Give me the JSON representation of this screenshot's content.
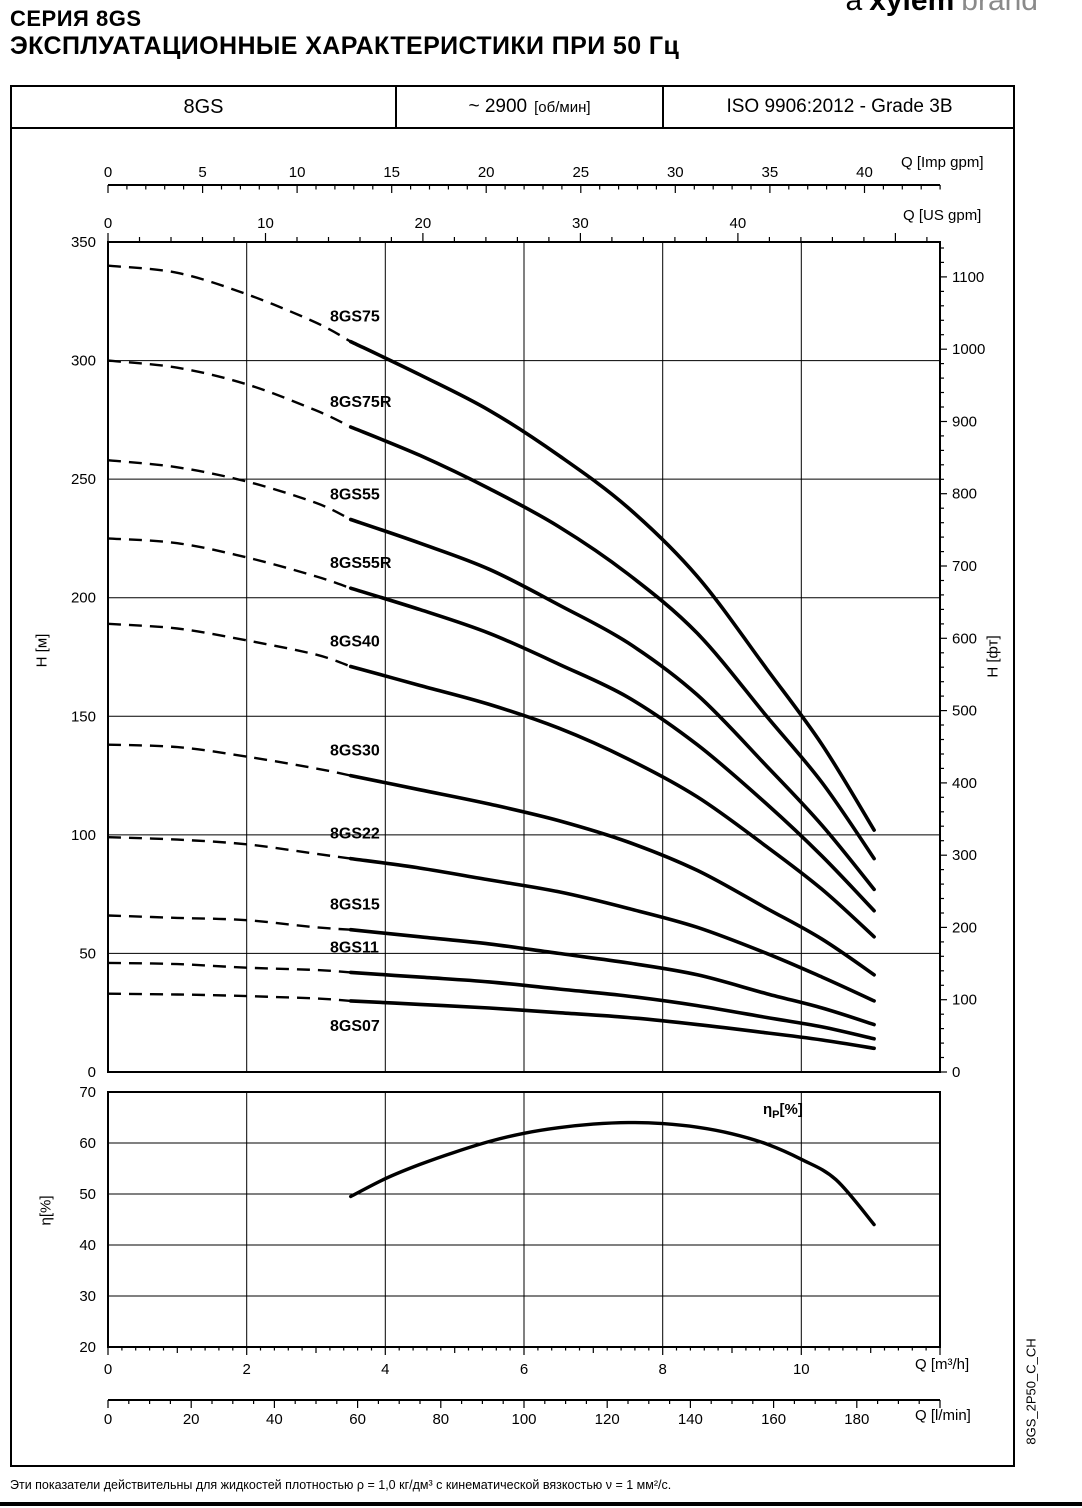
{
  "page": {
    "title": "СЕРИЯ 8GS",
    "subtitle": "ЭКСПЛУАТАЦИОННЫЕ ХАРАКТЕРИСТИКИ ПРИ 50 Гц",
    "brand": {
      "prefix": "a",
      "name": "xylem",
      "suffix": "brand"
    },
    "doc_code": "8GS_2P50_C_CH",
    "footer_note": "Эти показатели действительны для жидкостей плотностью ρ = 1,0 кг/дм³ с кинематической вязкостью ν = 1 мм²/с."
  },
  "header_table": {
    "model": "8GS",
    "speed_value": "~ 2900",
    "speed_unit": "[об/мин]",
    "standard": "ISO 9906:2012 - Grade 3B"
  },
  "chart_data": {
    "type": "line",
    "main_chart": {
      "x_axes": [
        {
          "label": "Q [Imp gpm]",
          "ticks": [
            0,
            5,
            10,
            15,
            20,
            25,
            30,
            35,
            40
          ],
          "units_per_m3h": 3.6662,
          "minor_step": 1,
          "major_step": 5
        },
        {
          "label": "Q [US gpm]",
          "ticks": [
            0,
            10,
            20,
            30,
            40
          ],
          "units_per_m3h": 4.4029,
          "minor_step": 2,
          "major_step": 10
        }
      ],
      "y_axis_left": {
        "label": "H [м]",
        "ticks": [
          0,
          50,
          100,
          150,
          200,
          250,
          300,
          350
        ],
        "range": [
          0,
          350
        ]
      },
      "y_axis_right": {
        "label": "H [фт]",
        "ticks": [
          0,
          100,
          200,
          300,
          400,
          500,
          600,
          700,
          800,
          900,
          1000,
          1100
        ],
        "feet_per_m": 3.2808,
        "minor_step": 20,
        "major_step": 100
      },
      "x_range_m3h": [
        0,
        12
      ],
      "grid_x_m3h": [
        2,
        4,
        6,
        8,
        10
      ],
      "grid_y_m": [
        50,
        100,
        150,
        200,
        250,
        300
      ],
      "q_m3h": [
        0,
        1,
        2,
        3,
        3.5,
        4.5,
        5.5,
        6.5,
        7.5,
        8.5,
        9.5,
        10.3,
        11.05
      ],
      "dashed_until_index": 4,
      "series": [
        {
          "name": "8GS75",
          "H_m": [
            340,
            337,
            328,
            316,
            308,
            294,
            279,
            260,
            238,
            209,
            170,
            138,
            102
          ]
        },
        {
          "name": "8GS75R",
          "H_m": [
            300,
            297,
            290,
            279,
            272,
            260,
            246,
            230,
            210,
            185,
            150,
            122,
            90
          ]
        },
        {
          "name": "8GS55",
          "H_m": [
            258,
            255,
            249,
            240,
            233,
            223,
            212,
            197,
            181,
            159,
            129,
            104,
            77
          ]
        },
        {
          "name": "8GS55R",
          "H_m": [
            225,
            223,
            217,
            209,
            204,
            195,
            185,
            172,
            158,
            138,
            113,
            91,
            68
          ]
        },
        {
          "name": "8GS40",
          "H_m": [
            189,
            187,
            182,
            176,
            171,
            163,
            155,
            145,
            132,
            116,
            95,
            77,
            57
          ]
        },
        {
          "name": "8GS30",
          "H_m": [
            138,
            137,
            133,
            128,
            125,
            119,
            113,
            106,
            97,
            85,
            69,
            56,
            41
          ]
        },
        {
          "name": "8GS22",
          "H_m": [
            99,
            98,
            96,
            92,
            90,
            86,
            81,
            76,
            69,
            61,
            50,
            40,
            30
          ]
        },
        {
          "name": "8GS15",
          "H_m": [
            66,
            65,
            64,
            61,
            60,
            57,
            54,
            50,
            46,
            41,
            33,
            27,
            20
          ]
        },
        {
          "name": "8GS11",
          "H_m": [
            46,
            45.5,
            44,
            43,
            42,
            40,
            38,
            35,
            32,
            28,
            23,
            19,
            14
          ]
        },
        {
          "name": "8GS07",
          "H_m": [
            33,
            32.7,
            32,
            31,
            30,
            28.5,
            27,
            25,
            23,
            20,
            16.5,
            13.5,
            10
          ]
        }
      ]
    },
    "efficiency_chart": {
      "curve_label": {
        "base": "η",
        "sub": "P",
        "rest": "[%]"
      },
      "y_axis": {
        "label": "η[%]",
        "ticks": [
          20,
          30,
          40,
          50,
          60,
          70
        ],
        "range": [
          20,
          70
        ]
      },
      "grid_y": [
        30,
        40,
        50,
        60
      ],
      "points_q_eta": [
        [
          3.5,
          49.5
        ],
        [
          4,
          53
        ],
        [
          4.5,
          55.8
        ],
        [
          5,
          58.2
        ],
        [
          5.5,
          60.3
        ],
        [
          6,
          61.9
        ],
        [
          6.5,
          63
        ],
        [
          7,
          63.7
        ],
        [
          7.5,
          64
        ],
        [
          8,
          63.8
        ],
        [
          8.5,
          63.1
        ],
        [
          9,
          61.8
        ],
        [
          9.5,
          59.8
        ],
        [
          10,
          56.8
        ],
        [
          10.5,
          52.8
        ],
        [
          11.05,
          44
        ]
      ]
    },
    "bottom_axes": [
      {
        "label": "Q [m³/h]",
        "ticks": [
          0,
          2,
          4,
          6,
          8,
          10
        ],
        "minor_step": 0.2,
        "major_step": 2
      },
      {
        "label": "Q [l/min]",
        "ticks": [
          0,
          20,
          40,
          60,
          80,
          100,
          120,
          140,
          160,
          180
        ],
        "units_per_m3h": 16.6667,
        "minor_step": 5,
        "major_step": 20
      }
    ]
  }
}
